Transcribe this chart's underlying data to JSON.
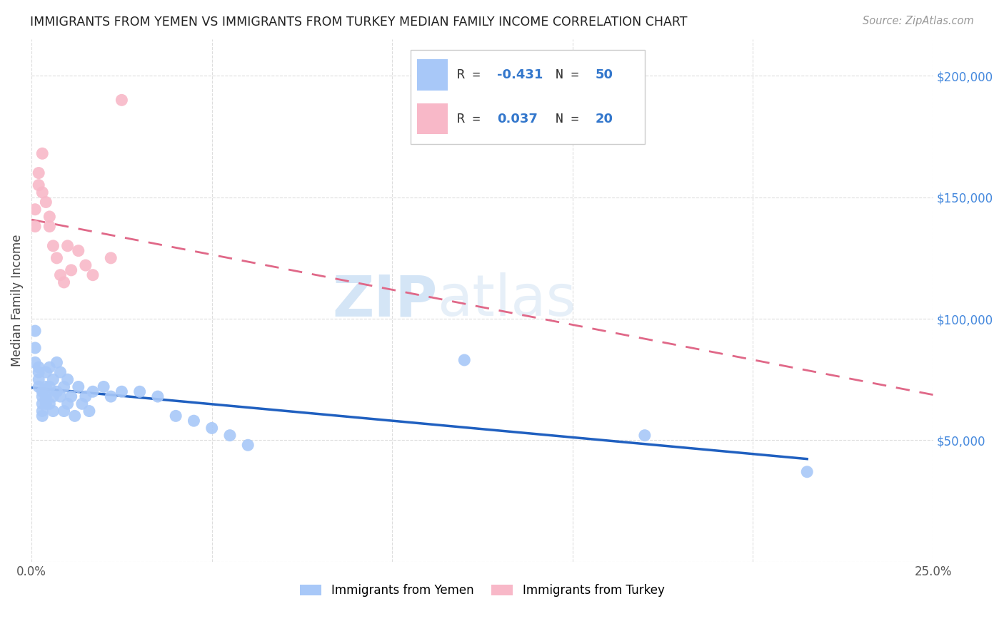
{
  "title": "IMMIGRANTS FROM YEMEN VS IMMIGRANTS FROM TURKEY MEDIAN FAMILY INCOME CORRELATION CHART",
  "source": "Source: ZipAtlas.com",
  "ylabel": "Median Family Income",
  "yticks": [
    0,
    50000,
    100000,
    150000,
    200000
  ],
  "ytick_labels": [
    "",
    "$50,000",
    "$100,000",
    "$150,000",
    "$200,000"
  ],
  "xlim": [
    0.0,
    0.25
  ],
  "ylim": [
    0,
    215000
  ],
  "legend_blue_r": "-0.431",
  "legend_blue_n": "50",
  "legend_pink_r": "0.037",
  "legend_pink_n": "20",
  "blue_color": "#A8C8F8",
  "pink_color": "#F8B8C8",
  "blue_line_color": "#2060C0",
  "pink_line_color": "#E06888",
  "watermark_zip": "ZIP",
  "watermark_atlas": "atlas",
  "legend_label_blue": "Immigrants from Yemen",
  "legend_label_pink": "Immigrants from Turkey",
  "yemen_x": [
    0.001,
    0.001,
    0.001,
    0.002,
    0.002,
    0.002,
    0.002,
    0.003,
    0.003,
    0.003,
    0.003,
    0.003,
    0.004,
    0.004,
    0.004,
    0.004,
    0.005,
    0.005,
    0.005,
    0.006,
    0.006,
    0.006,
    0.007,
    0.007,
    0.008,
    0.008,
    0.009,
    0.009,
    0.01,
    0.01,
    0.011,
    0.012,
    0.013,
    0.014,
    0.015,
    0.016,
    0.017,
    0.02,
    0.022,
    0.025,
    0.03,
    0.035,
    0.04,
    0.045,
    0.05,
    0.055,
    0.06,
    0.12,
    0.17,
    0.215
  ],
  "yemen_y": [
    95000,
    88000,
    82000,
    80000,
    78000,
    75000,
    72000,
    70000,
    68000,
    65000,
    62000,
    60000,
    78000,
    72000,
    68000,
    65000,
    80000,
    72000,
    65000,
    75000,
    68000,
    62000,
    82000,
    70000,
    78000,
    68000,
    72000,
    62000,
    75000,
    65000,
    68000,
    60000,
    72000,
    65000,
    68000,
    62000,
    70000,
    72000,
    68000,
    70000,
    70000,
    68000,
    60000,
    58000,
    55000,
    52000,
    48000,
    83000,
    52000,
    37000
  ],
  "turkey_x": [
    0.001,
    0.001,
    0.002,
    0.002,
    0.003,
    0.003,
    0.004,
    0.005,
    0.005,
    0.006,
    0.007,
    0.008,
    0.009,
    0.01,
    0.011,
    0.013,
    0.015,
    0.017,
    0.022,
    0.025
  ],
  "turkey_y": [
    145000,
    138000,
    160000,
    155000,
    168000,
    152000,
    148000,
    142000,
    138000,
    130000,
    125000,
    118000,
    115000,
    130000,
    120000,
    128000,
    122000,
    118000,
    125000,
    190000
  ]
}
